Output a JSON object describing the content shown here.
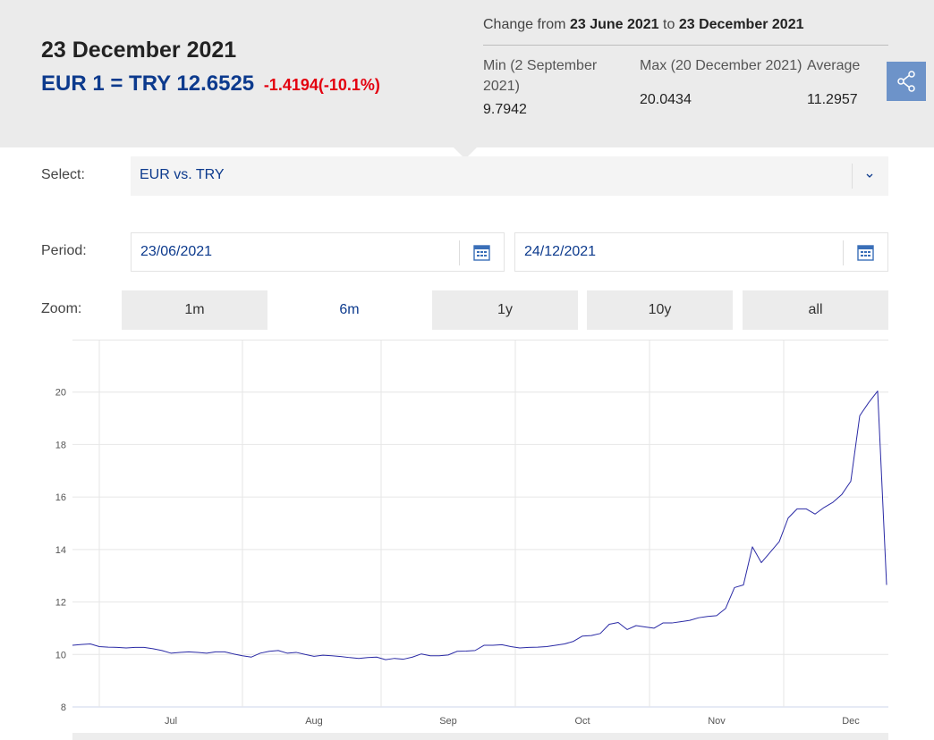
{
  "header": {
    "date": "23 December 2021",
    "rate": "EUR 1 = TRY 12.6525",
    "change": "-1.4194(-10.1%)"
  },
  "summary": {
    "prefix": "Change from",
    "from": "23 June 2021",
    "connector": "to",
    "to": "23 December 2021",
    "min_label": "Min (2 September 2021)",
    "min": "9.7942",
    "max_label": "Max (20 December 2021)",
    "max": "20.0434",
    "avg_label": "Average",
    "avg": "11.2957"
  },
  "controls": {
    "select_label": "Select:",
    "select_value": "EUR vs. TRY",
    "period_label": "Period:",
    "start": "23/06/2021",
    "end": "24/12/2021",
    "zoom_label": "Zoom:",
    "zoom": [
      "1m",
      "6m",
      "1y",
      "10y",
      "all"
    ],
    "zoom_selected": 1
  },
  "chart_data": {
    "type": "line",
    "color": "#2a2aa5",
    "grid": true,
    "ylim": [
      8,
      22
    ],
    "yticks": [
      8,
      10,
      12,
      14,
      16,
      18,
      20
    ],
    "categories": [
      null,
      null,
      null,
      null,
      null,
      null,
      null,
      null,
      null,
      null,
      null,
      "Jul",
      null,
      null,
      null,
      null,
      null,
      null,
      null,
      null,
      null,
      null,
      null,
      null,
      null,
      null,
      null,
      "Aug",
      null,
      null,
      null,
      null,
      null,
      null,
      null,
      null,
      null,
      null,
      null,
      null,
      null,
      null,
      "Sep",
      null,
      null,
      null,
      null,
      null,
      null,
      null,
      null,
      null,
      null,
      null,
      null,
      null,
      null,
      "Oct",
      null,
      null,
      null,
      null,
      null,
      null,
      null,
      null,
      null,
      null,
      null,
      null,
      null,
      null,
      "Nov",
      null,
      null,
      null,
      null,
      null,
      null,
      null,
      null,
      null,
      null,
      null,
      null,
      null,
      null,
      "Dec",
      null,
      null,
      null,
      null
    ],
    "values": [
      10.35,
      10.38,
      10.4,
      10.3,
      10.28,
      10.27,
      10.25,
      10.27,
      10.27,
      10.22,
      10.15,
      10.05,
      10.08,
      10.1,
      10.08,
      10.05,
      10.1,
      10.1,
      10.02,
      9.95,
      9.9,
      10.05,
      10.12,
      10.15,
      10.05,
      10.08,
      10.0,
      9.93,
      9.97,
      9.95,
      9.92,
      9.88,
      9.85,
      9.88,
      9.9,
      9.8,
      9.85,
      9.82,
      9.9,
      10.02,
      9.95,
      9.95,
      9.98,
      10.12,
      10.13,
      10.15,
      10.35,
      10.35,
      10.37,
      10.3,
      10.25,
      10.27,
      10.28,
      10.3,
      10.35,
      10.4,
      10.5,
      10.7,
      10.72,
      10.8,
      11.15,
      11.22,
      10.95,
      11.1,
      11.05,
      11.0,
      11.2,
      11.2,
      11.25,
      11.3,
      11.4,
      11.45,
      11.48,
      11.75,
      12.55,
      12.65,
      14.1,
      13.5,
      13.9,
      14.3,
      15.2,
      15.55,
      15.55,
      15.35,
      15.6,
      15.8,
      16.1,
      16.6,
      19.1,
      19.6,
      20.04,
      12.65
    ]
  }
}
